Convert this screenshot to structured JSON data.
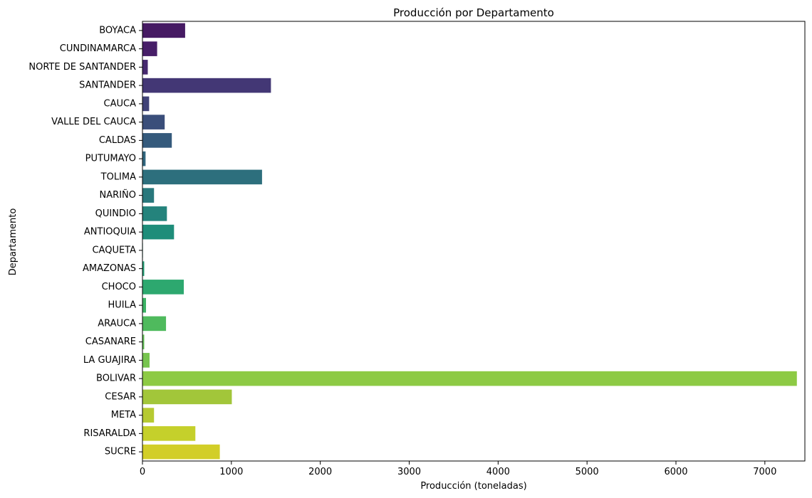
{
  "chart_data": {
    "type": "bar",
    "orientation": "horizontal",
    "title": "Producción por Departamento",
    "xlabel": "Producción (toneladas)",
    "ylabel": "Departamento",
    "xlim": [
      0,
      7450
    ],
    "xticks": [
      0,
      1000,
      2000,
      3000,
      4000,
      5000,
      6000,
      7000
    ],
    "grid": false,
    "palette": "viridis",
    "categories": [
      "BOYACA",
      "CUNDINAMARCA",
      "NORTE DE SANTANDER",
      "SANTANDER",
      "CAUCA",
      "VALLE DEL CAUCA",
      "CALDAS",
      "PUTUMAYO",
      "TOLIMA",
      "NARIÑO",
      "QUINDIO",
      "ANTIOQUIA",
      "CAQUETA",
      "AMAZONAS",
      "CHOCO",
      "HUILA",
      "ARAUCA",
      "CASANARE",
      "LA GUAJIRA",
      "BOLIVAR",
      "CESAR",
      "META",
      "RISARALDA",
      "SUCRE"
    ],
    "values": [
      480,
      165,
      60,
      1445,
      75,
      250,
      330,
      35,
      1345,
      130,
      275,
      355,
      5,
      20,
      465,
      40,
      265,
      20,
      80,
      7360,
      1005,
      130,
      595,
      870
    ],
    "colors": [
      "#461a63",
      "#471e68",
      "#46296f",
      "#433775",
      "#404278",
      "#3a4e7a",
      "#355a7c",
      "#31667e",
      "#2d6f7d",
      "#29787c",
      "#24837c",
      "#1e8d7a",
      "#1f977a",
      "#239f76",
      "#2da86f",
      "#3cb365",
      "#4fba5d",
      "#63bf56",
      "#77c44f",
      "#8dca44",
      "#a2c63a",
      "#b6ca31",
      "#c5d02b",
      "#d2ce28"
    ]
  }
}
